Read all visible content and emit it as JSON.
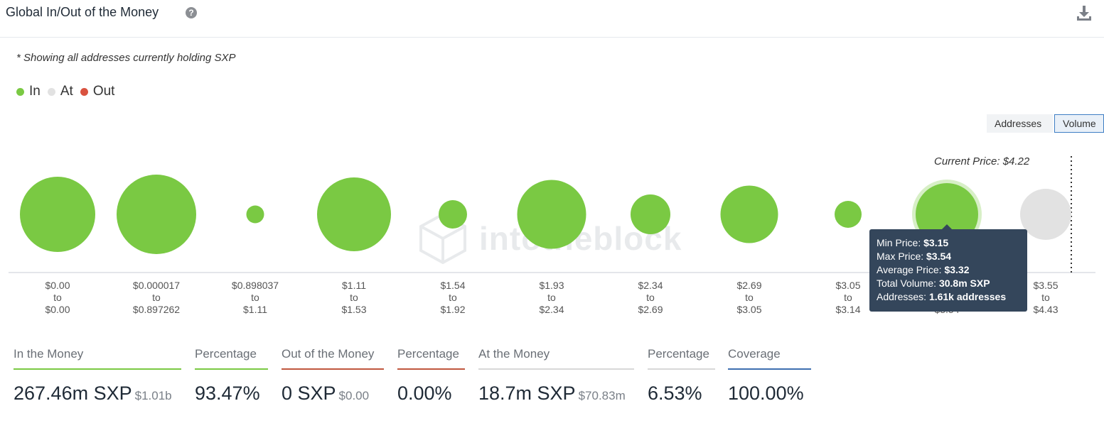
{
  "header": {
    "title": "Global In/Out of the Money",
    "help_glyph": "?"
  },
  "note": "* Showing all addresses currently holding SXP",
  "legend": [
    {
      "label": "In",
      "color": "#7ac943"
    },
    {
      "label": "At",
      "color": "#e2e2e2"
    },
    {
      "label": "Out",
      "color": "#d9523f"
    }
  ],
  "toggles": {
    "addresses": "Addresses",
    "volume": "Volume",
    "active": "Volume"
  },
  "current_price_label": "Current Price: $4.22",
  "watermark": "intotheblock",
  "tooltip": {
    "min_label": "Min Price:",
    "min_value": "$3.15",
    "max_label": "Max Price:",
    "max_value": "$3.54",
    "avg_label": "Average Price:",
    "avg_value": "$3.32",
    "vol_label": "Total Volume:",
    "vol_value": "30.8m SXP",
    "addr_label": "Addresses:",
    "addr_value": "1.61k addresses"
  },
  "chart_data": {
    "type": "scatter",
    "categories": [
      [
        "$0.00",
        "to",
        "$0.00"
      ],
      [
        "$0.000017",
        "to",
        "$0.897262"
      ],
      [
        "$0.898037",
        "to",
        "$1.11"
      ],
      [
        "$1.11",
        "to",
        "$1.53"
      ],
      [
        "$1.54",
        "to",
        "$1.92"
      ],
      [
        "$1.93",
        "to",
        "$2.34"
      ],
      [
        "$2.34",
        "to",
        "$2.69"
      ],
      [
        "$2.69",
        "to",
        "$3.05"
      ],
      [
        "$3.05",
        "to",
        "$3.14"
      ],
      [
        "$3.15",
        "to",
        "$3.54"
      ],
      [
        "$3.55",
        "to",
        "$4.43"
      ]
    ],
    "status": [
      "In",
      "In",
      "In",
      "In",
      "In",
      "In",
      "In",
      "In",
      "In",
      "In",
      "At"
    ],
    "relative_volume": [
      53,
      56,
      12.5,
      52,
      20,
      48.5,
      28,
      40.5,
      19,
      44,
      36
    ],
    "highlighted_index": 9,
    "colors": {
      "In": "#7ac943",
      "At": "#e2e2e2",
      "Out": "#d9523f"
    }
  },
  "stats": [
    {
      "label": "In the Money",
      "value": "267.46m SXP",
      "sub": "$1.01b",
      "color": "#7ac943"
    },
    {
      "label": "Percentage",
      "value": "93.47%",
      "sub": "",
      "color": "#7ac943"
    },
    {
      "label": "Out of the Money",
      "value": "0 SXP",
      "sub": "$0.00",
      "color": "#c0573e"
    },
    {
      "label": "Percentage",
      "value": "0.00%",
      "sub": "",
      "color": "#c0573e"
    },
    {
      "label": "At the Money",
      "value": "18.7m SXP",
      "sub": "$70.83m",
      "color": "#d8d8d8"
    },
    {
      "label": "Percentage",
      "value": "6.53%",
      "sub": "",
      "color": "#d8d8d8"
    },
    {
      "label": "Coverage",
      "value": "100.00%",
      "sub": "",
      "color": "#3e6fb0"
    }
  ]
}
